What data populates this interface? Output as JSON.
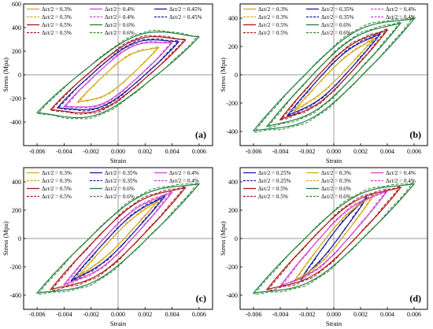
{
  "colors": {
    "0.25": "#1a1aa0",
    "0.3": "#d6a81c",
    "0.35": "#1a1aa0",
    "0.4": "#cc44cc",
    "0.45": "#1a1aa0",
    "0.5": "#a81818",
    "0.6": "#1f7a50",
    "0.6sim": "#2f8f1f"
  },
  "chart_data": [
    {
      "type": "line",
      "panel_label": "(a)",
      "xlabel": "Strain",
      "ylabel": "Stress (Mpa)",
      "xlim": [
        -0.007,
        0.007
      ],
      "ylim": [
        -600,
        600
      ],
      "xticks": [
        -0.006,
        -0.004,
        -0.002,
        0.0,
        0.002,
        0.004,
        0.006
      ],
      "xtick_labels": [
        "-0.006",
        "-0.004",
        "-0.002",
        "0.000",
        "0.002",
        "0.004",
        "0.006"
      ],
      "yticks": [
        -400,
        -200,
        0,
        200,
        400,
        600
      ],
      "ytick_labels": [
        "-400",
        "-200",
        "0",
        "200",
        "400",
        "600"
      ],
      "legend": [
        {
          "label": "Δεt/2 = 0.3%",
          "amp": "0.3",
          "dash": false
        },
        {
          "label": "Δεt/2 = 0.4%",
          "amp": "0.4",
          "dash": false
        },
        {
          "label": "Δεt/2 = 0.45%",
          "amp": "0.45",
          "dash": false
        },
        {
          "label": "Δεt/2 = 0.3%",
          "amp": "0.3",
          "dash": true
        },
        {
          "label": "Δεt/2 = 0.4%",
          "amp": "0.4",
          "dash": true
        },
        {
          "label": "Δεt/2 = 0.45%",
          "amp": "0.45",
          "dash": true
        },
        {
          "label": "Δεt/2 = 0.5%",
          "amp": "0.5",
          "dash": false
        },
        {
          "label": "Δεt/2 = 0.6%",
          "amp": "0.6",
          "dash": false
        },
        {
          "label": "Δεt/2 = 0.5%",
          "amp": "0.5",
          "dash": true
        },
        {
          "label": "Δεt/2 = 0.6%",
          "amp": "0.6sim",
          "dash": true
        }
      ],
      "loops": [
        {
          "amp": 0.003,
          "peak": 230,
          "w": 100
        },
        {
          "amp": 0.004,
          "peak": 270,
          "w": 165
        },
        {
          "amp": 0.0045,
          "peak": 280,
          "w": 190
        },
        {
          "amp": 0.005,
          "peak": 295,
          "w": 215
        },
        {
          "amp": 0.006,
          "peak": 320,
          "w": 250
        }
      ]
    },
    {
      "type": "line",
      "panel_label": "(b)",
      "xlabel": "Strain",
      "ylabel": "Stress (Mpa)",
      "xlim": [
        -0.007,
        0.007
      ],
      "ylim": [
        -500,
        500
      ],
      "xticks": [
        -0.006,
        -0.004,
        -0.002,
        0.0,
        0.002,
        0.004,
        0.006
      ],
      "xtick_labels": [
        "-0.006",
        "-0.004",
        "-0.002",
        "0.000",
        "0.002",
        "0.004",
        "0.006"
      ],
      "yticks": [
        -400,
        -200,
        0,
        200,
        400
      ],
      "ytick_labels": [
        "-400",
        "-200",
        "0",
        "200",
        "400"
      ],
      "legend": [
        {
          "label": "Δεt/2 = 0.3%",
          "amp": "0.3",
          "dash": false
        },
        {
          "label": "Δεt/2 = 0.35%",
          "amp": "0.35",
          "dash": false
        },
        {
          "label": "Δεt/2 = 0.4%",
          "amp": "0.4",
          "dash": true
        },
        {
          "label": "Δεt/2 = 0.3%",
          "amp": "0.3",
          "dash": true
        },
        {
          "label": "Δεt/2 = 0.35%",
          "amp": "0.35",
          "dash": true
        },
        {
          "label": "Δεt/2 = 0.4%",
          "amp": "0.4",
          "dash": true
        },
        {
          "label": "Δεt/2 = 0.5%",
          "amp": "0.5",
          "dash": false
        },
        {
          "label": "Δεt/2 = 0.6%",
          "amp": "0.6",
          "dash": false
        },
        {
          "label": "Δεt/2 = 0.5%",
          "amp": "0.5",
          "dash": true
        },
        {
          "label": "Δεt/2 = 0.6%",
          "amp": "0.6sim",
          "dash": true
        }
      ],
      "loops": [
        {
          "amp": 0.003,
          "peak": 255,
          "w": 50
        },
        {
          "amp": 0.0035,
          "peak": 290,
          "w": 85
        },
        {
          "amp": 0.004,
          "peak": 315,
          "w": 110
        },
        {
          "amp": 0.005,
          "peak": 365,
          "w": 150
        },
        {
          "amp": 0.006,
          "peak": 395,
          "w": 195
        }
      ]
    },
    {
      "type": "line",
      "panel_label": "(c)",
      "xlabel": "Strain",
      "ylabel": "Stress (Mpa)",
      "xlim": [
        -0.007,
        0.007
      ],
      "ylim": [
        -500,
        500
      ],
      "xticks": [
        -0.006,
        -0.004,
        -0.002,
        0.0,
        0.002,
        0.004,
        0.006
      ],
      "xtick_labels": [
        "-0.006",
        "-0.004",
        "-0.002",
        "0.000",
        "0.002",
        "0.004",
        "0.006"
      ],
      "yticks": [
        -400,
        -200,
        0,
        200,
        400
      ],
      "ytick_labels": [
        "-400",
        "-200",
        "0",
        "200",
        "400"
      ],
      "legend": [
        {
          "label": "Δεt/2 = 0.3%",
          "amp": "0.3",
          "dash": false
        },
        {
          "label": "Δεt/2 = 0.35%",
          "amp": "0.35",
          "dash": false
        },
        {
          "label": "Δεt/2 = 0.4%",
          "amp": "0.4",
          "dash": false
        },
        {
          "label": "Δεt/2 = 0.3%",
          "amp": "0.3",
          "dash": true
        },
        {
          "label": "Δεt/2 = 0.35%",
          "amp": "0.35",
          "dash": true
        },
        {
          "label": "Δεt/2 = 0.4%",
          "amp": "0.4",
          "dash": true
        },
        {
          "label": "Δεt/2 = 0.5%",
          "amp": "0.5",
          "dash": false
        },
        {
          "label": "Δεt/2 = 0.6%",
          "amp": "0.6",
          "dash": false
        },
        {
          "label": "Δεt/2 = 0.5%",
          "amp": "0.5",
          "dash": true
        },
        {
          "label": "Δεt/2 = 0.6%",
          "amp": "0.6sim",
          "dash": true
        }
      ],
      "loops": [
        {
          "amp": 0.003,
          "peak": 270,
          "w": 45
        },
        {
          "amp": 0.0035,
          "peak": 300,
          "w": 75
        },
        {
          "amp": 0.004,
          "peak": 325,
          "w": 105
        },
        {
          "amp": 0.005,
          "peak": 360,
          "w": 150
        },
        {
          "amp": 0.006,
          "peak": 385,
          "w": 190
        }
      ]
    },
    {
      "type": "line",
      "panel_label": "(d)",
      "xlabel": "Strain",
      "ylabel": "Stress (Mpa)",
      "xlim": [
        -0.007,
        0.007
      ],
      "ylim": [
        -500,
        500
      ],
      "xticks": [
        -0.006,
        -0.004,
        -0.002,
        0.0,
        0.002,
        0.004,
        0.006
      ],
      "xtick_labels": [
        "-0.006",
        "-0.004",
        "-0.002",
        "0.000",
        "0.002",
        "0.004",
        "0.006"
      ],
      "yticks": [
        -400,
        -200,
        0,
        200,
        400
      ],
      "ytick_labels": [
        "-400",
        "-200",
        "0",
        "200",
        "400"
      ],
      "legend": [
        {
          "label": "Δεt/2 = 0.25%",
          "amp": "0.25",
          "dash": false
        },
        {
          "label": "Δεt/2 = 0.3%",
          "amp": "0.3",
          "dash": false
        },
        {
          "label": "Δεt/2 = 0.4%",
          "amp": "0.4",
          "dash": false
        },
        {
          "label": "Δεt/2 = 0.25%",
          "amp": "0.25",
          "dash": true
        },
        {
          "label": "Δεt/2 = 0.3%",
          "amp": "0.3",
          "dash": true
        },
        {
          "label": "Δεt/2 = 0.4%",
          "amp": "0.4",
          "dash": true
        },
        {
          "label": "Δεt/2 = 0.5%",
          "amp": "0.5",
          "dash": false
        },
        {
          "label": "Δεt/2 = 0.6%",
          "amp": "0.6",
          "dash": false
        },
        {
          "label": "Δεt/2 = 0.5%",
          "amp": "0.5",
          "dash": true
        },
        {
          "label": "Δεt/2 = 0.6%",
          "amp": "0.6sim",
          "dash": true
        }
      ],
      "loops": [
        {
          "amp": 0.0025,
          "peak": 290,
          "w": 40
        },
        {
          "amp": 0.003,
          "peak": 305,
          "w": 70
        },
        {
          "amp": 0.004,
          "peak": 335,
          "w": 110
        },
        {
          "amp": 0.005,
          "peak": 360,
          "w": 150
        },
        {
          "amp": 0.006,
          "peak": 385,
          "w": 190
        }
      ]
    }
  ]
}
